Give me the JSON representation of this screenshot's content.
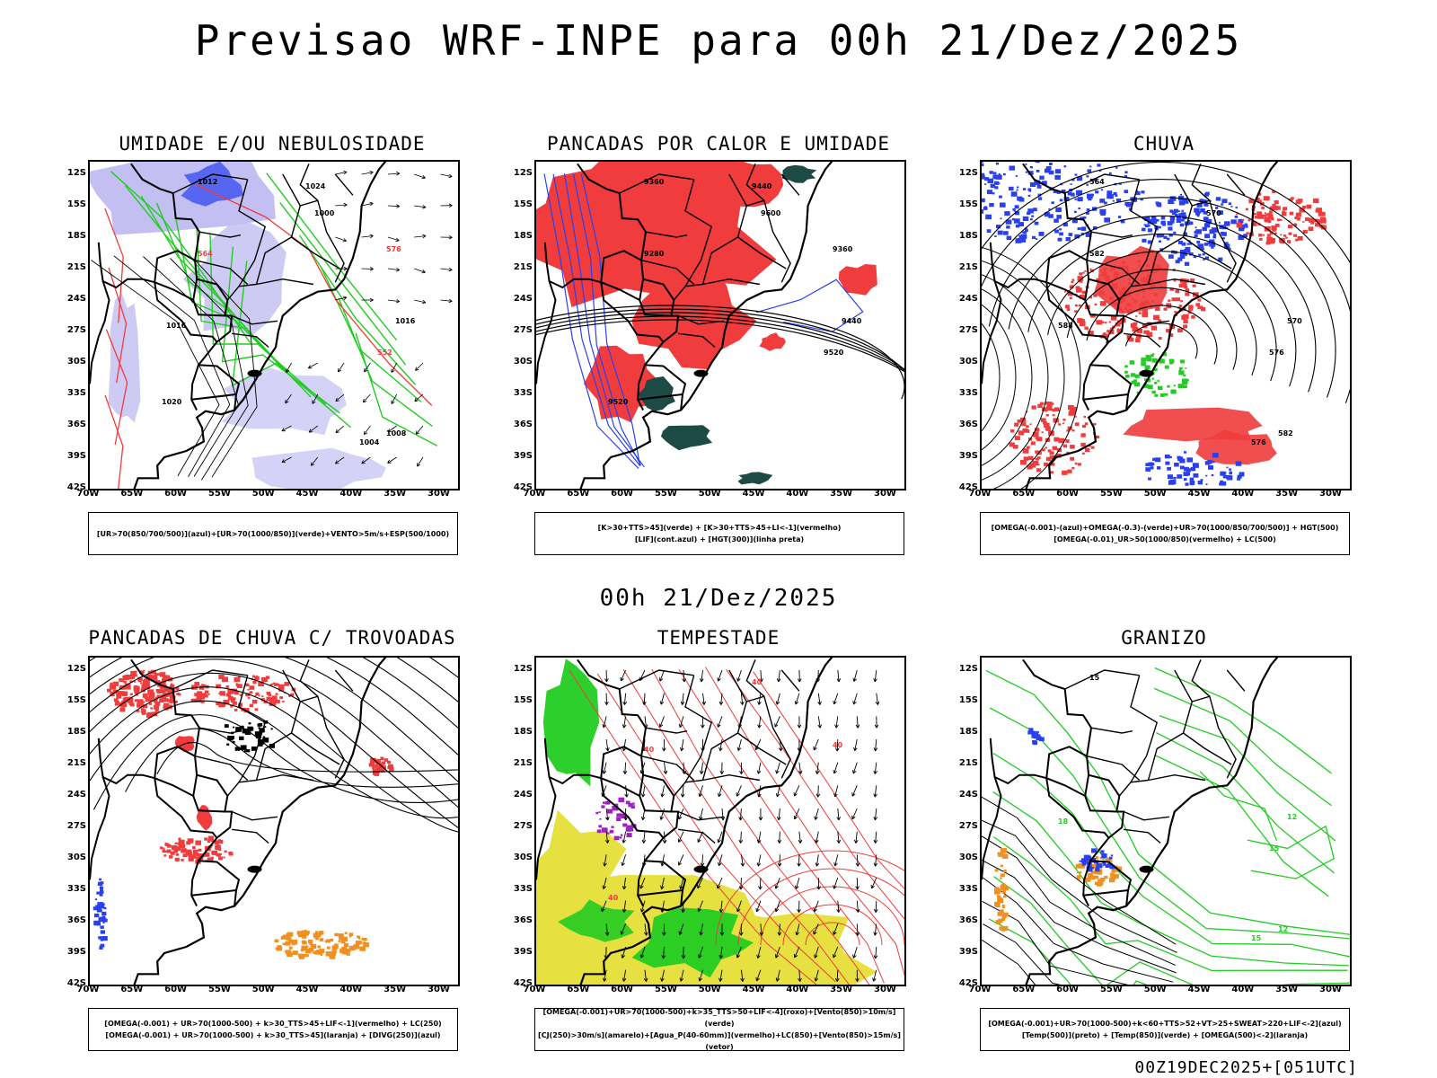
{
  "title": "Previsao WRF-INPE  para 00h 21/Dez/2025",
  "mid_label": "00h 21/Dez/2025",
  "footer": "00Z19DEC2025+[051UTC]",
  "lat_ticks": [
    "12S",
    "15S",
    "18S",
    "21S",
    "24S",
    "27S",
    "30S",
    "33S",
    "36S",
    "39S",
    "42S"
  ],
  "lon_ticks": [
    "70W",
    "65W",
    "60W",
    "55W",
    "50W",
    "45W",
    "40W",
    "35W",
    "30W"
  ],
  "colors": {
    "red": "#f03c3c",
    "green": "#22cc22",
    "blue": "#2840f0",
    "lavender": "#b8b4f0",
    "darkteal": "#1e4a46",
    "yellow": "#e6e040",
    "orange": "#f09020",
    "purple": "#a020c0"
  },
  "panels": [
    {
      "title": "UMIDADE E/OU NEBULOSIDADE",
      "legend": [
        "[UR>70(850/700/500)](azul)+[UR>70(1000/850)](verde)+VENTO>5m/s+ESP(500/1000)"
      ],
      "labels": [
        "1012",
        "1016",
        "1008",
        "1004",
        "1000",
        "1020",
        "1024",
        "576",
        "564",
        "552",
        "1016"
      ]
    },
    {
      "title": "PANCADAS POR CALOR E UMIDADE",
      "legend": [
        "[K>30+TTS>45](verde) + [K>30+TTS>45+LI<-1](vermelho)",
        "[LIF](cont.azul) + [HGT(300)](linha preta)"
      ],
      "labels": [
        "9600",
        "9520",
        "9440",
        "9360",
        "9280",
        "9520",
        "9440",
        "9360"
      ]
    },
    {
      "title": "CHUVA",
      "legend": [
        "[OMEGA(-0.001)-(azul)+OMEGA(-0.3)-(verde)+UR>70(1000/850/700/500)] + HGT(500)",
        "[OMEGA(-0.01)_UR>50(1000/850)(vermelho) + LC(500)"
      ],
      "labels": [
        "582",
        "576",
        "570",
        "564",
        "588",
        "582",
        "576",
        "570"
      ]
    },
    {
      "title": "PANCADAS DE CHUVA C/ TROVOADAS",
      "legend": [
        "[OMEGA(-0.001) + UR>70(1000-500) + k>30_TTS>45+LIF<-1](vermelho) + LC(250)",
        "[OMEGA(-0.001) + UR>70(1000-500) + k>30_TTS>45](laranja) + [DIVG(250)](azul)"
      ],
      "labels": []
    },
    {
      "title": "TEMPESTADE",
      "legend": [
        "[OMEGA(-0.001)+UR>70(1000-500)+k>35_TTS>50+LIF<-4](roxo)+[Vento(850)>10m/s](verde)",
        "[CJ(250)>30m/s](amarelo)+[Agua_P(40-60mm)](vermelho)+LC(850)+[Vento(850)>15m/s](vetor)"
      ],
      "labels": [
        "40",
        "40",
        "40",
        "40"
      ]
    },
    {
      "title": "GRANIZO",
      "legend": [
        "[OMEGA(-0.001)+UR>70(1000-500)+k<60+TTS>52+VT>25+SWEAT>220+LIF<-2](azul)",
        "[Temp(500)](preto) + [Temp(850)](verde) + [OMEGA(500)<-2](laranja)"
      ],
      "labels": [
        "15",
        "12",
        "15",
        "18",
        "12",
        "15"
      ]
    }
  ]
}
